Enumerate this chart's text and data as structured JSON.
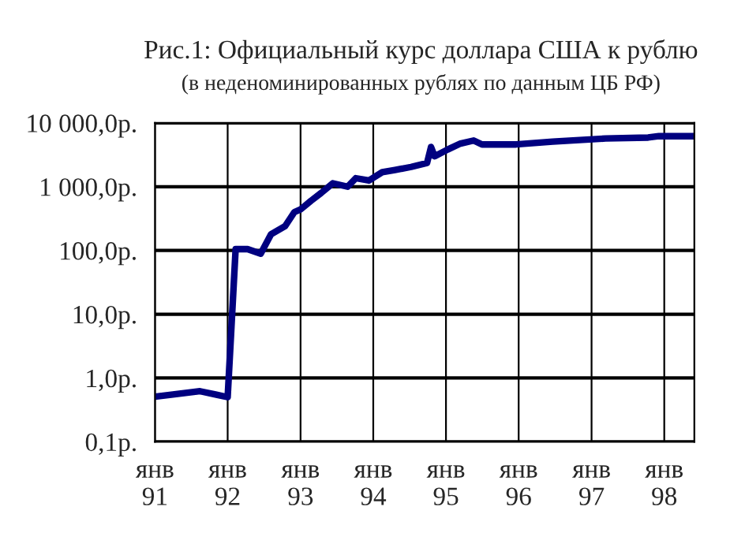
{
  "chart_data": {
    "type": "line",
    "title": "Рис.1: Официальный курс доллара США к рублю",
    "subtitle": "(в неденоминированных рублях по данным ЦБ РФ)",
    "x": [
      "1991-01-01",
      "1991-04-01",
      "1991-08-15",
      "1991-11-01",
      "1992-01-01",
      "1992-01-20",
      "1992-02-10",
      "1992-04-10",
      "1992-06-15",
      "1992-08-06",
      "1992-10-15",
      "1992-12-01",
      "1993-01-01",
      "1993-02-22",
      "1993-04-15",
      "1993-06-12",
      "1993-08-25",
      "1993-10-05",
      "1993-12-10",
      "1994-02-15",
      "1994-04-20",
      "1994-07-10",
      "1994-09-28",
      "1994-10-18",
      "1994-11-05",
      "1995-01-10",
      "1995-03-15",
      "1995-05-20",
      "1995-07-01",
      "1995-12-20",
      "1996-06-20",
      "1997-03-12",
      "1997-10-12",
      "1997-12-05",
      "1998-06-01"
    ],
    "series": [
      {
        "color": "#000080",
        "values": [
          0.51,
          0.55,
          0.62,
          0.55,
          0.5,
          6.3,
          105,
          105,
          89,
          180,
          240,
          400,
          440,
          600,
          800,
          1130,
          1000,
          1360,
          1250,
          1690,
          1830,
          2040,
          2350,
          4200,
          3000,
          3830,
          4750,
          5300,
          4600,
          4600,
          5100,
          5700,
          5900,
          6200,
          6200
        ]
      }
    ],
    "log": "y",
    "xlim": [
      "1991-01-01",
      "1998-06-01"
    ],
    "xticks": [
      {
        "value": "1991-01-01",
        "label": "янв\n91"
      },
      {
        "value": "1992-01-01",
        "label": "янв\n92"
      },
      {
        "value": "1993-01-01",
        "label": "янв\n93"
      },
      {
        "value": "1994-01-01",
        "label": "янв\n94"
      },
      {
        "value": "1995-01-01",
        "label": "янв\n95"
      },
      {
        "value": "1996-01-01",
        "label": "янв\n96"
      },
      {
        "value": "1997-01-01",
        "label": "янв\n97"
      },
      {
        "value": "1998-01-01",
        "label": "янв\n98"
      }
    ],
    "ylim": [
      0.1,
      10000
    ],
    "yticks": [
      {
        "value": 0.1,
        "label": "0,1р."
      },
      {
        "value": 1,
        "label": "1,0р."
      },
      {
        "value": 10,
        "label": "10,0р."
      },
      {
        "value": 100,
        "label": "100,0р."
      },
      {
        "value": 1000,
        "label": "1 000,0р."
      },
      {
        "value": 10000,
        "label": "10 000,0р."
      }
    ],
    "grid": true,
    "marker": "none",
    "line_style": "solid"
  }
}
